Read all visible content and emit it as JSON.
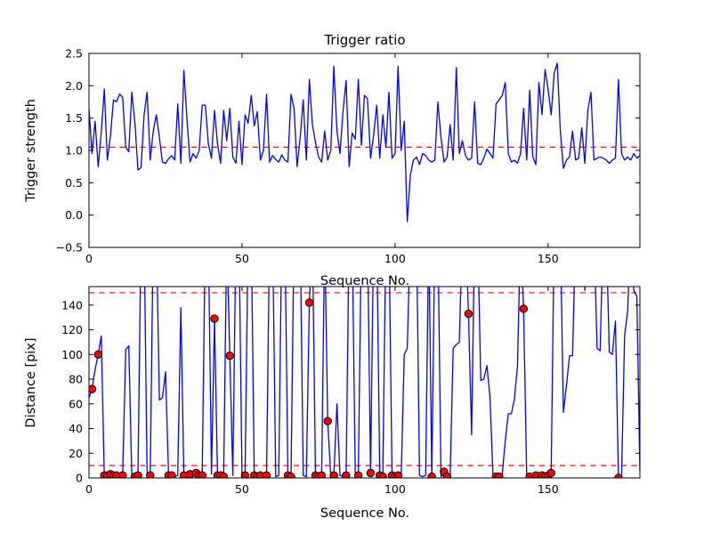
{
  "figure": {
    "background": "#ffffff"
  },
  "chart_data": [
    {
      "type": "line",
      "title": "Trigger ratio",
      "xlabel": "Sequence No.",
      "ylabel": "Trigger strength",
      "xlim": [
        0,
        180
      ],
      "ylim": [
        -0.5,
        2.5
      ],
      "grid": false,
      "legend": "none",
      "line_color": "#0000ff",
      "threshold_color": "#ff0000",
      "thresholds": [
        1.05
      ],
      "xticks": {
        "values": [
          0,
          50,
          100,
          150
        ],
        "labels": [
          "0",
          "50",
          "100",
          "150"
        ]
      },
      "yticks": {
        "values": [
          -0.5,
          0.0,
          0.5,
          1.0,
          1.5,
          2.0,
          2.5
        ],
        "labels": [
          "−0.5",
          "0.0",
          "0.5",
          "1.0",
          "1.5",
          "2.0",
          "2.5"
        ]
      },
      "x_step": 1,
      "values": [
        1.63,
        0.95,
        1.45,
        0.75,
        1.28,
        1.95,
        0.85,
        1.22,
        1.78,
        1.75,
        1.87,
        1.82,
        1.05,
        0.98,
        1.9,
        1.42,
        0.7,
        0.73,
        1.55,
        1.9,
        0.85,
        1.3,
        1.55,
        1.2,
        0.82,
        0.8,
        0.87,
        0.92,
        0.85,
        1.72,
        0.8,
        2.24,
        1.5,
        0.82,
        0.95,
        0.88,
        1.0,
        1.7,
        1.7,
        1.1,
        0.88,
        1.62,
        1.1,
        0.8,
        1.62,
        1.15,
        1.65,
        0.9,
        0.8,
        1.45,
        0.78,
        1.55,
        1.42,
        1.85,
        1.38,
        1.6,
        0.85,
        1.0,
        1.87,
        0.82,
        0.92,
        0.86,
        0.82,
        0.93,
        0.85,
        0.82,
        1.87,
        1.65,
        0.75,
        1.2,
        1.78,
        0.85,
        2.1,
        1.4,
        1.12,
        0.9,
        0.82,
        1.3,
        0.85,
        1.0,
        2.3,
        1.3,
        0.95,
        1.6,
        2.08,
        0.75,
        1.27,
        1.17,
        2.1,
        1.08,
        1.85,
        1.8,
        0.88,
        1.24,
        1.7,
        0.88,
        1.55,
        1.05,
        1.9,
        0.88,
        0.95,
        2.3,
        1.0,
        1.45,
        -0.1,
        0.62,
        0.85,
        0.9,
        0.78,
        0.95,
        0.92,
        0.85,
        0.82,
        0.85,
        1.75,
        1.2,
        0.82,
        0.9,
        1.4,
        0.85,
        2.28,
        0.95,
        1.15,
        0.92,
        0.85,
        0.88,
        1.75,
        0.8,
        0.78,
        0.88,
        1.02,
        0.95,
        0.88,
        1.72,
        1.78,
        1.85,
        2.05,
        0.95,
        0.82,
        0.85,
        0.8,
        0.95,
        1.65,
        0.85,
        1.93,
        0.9,
        0.78,
        2.05,
        1.55,
        2.25,
        1.95,
        1.55,
        2.2,
        2.35,
        1.3,
        0.72,
        0.85,
        0.9,
        1.3,
        0.85,
        0.88,
        1.35,
        0.8,
        1.62,
        1.9,
        0.85,
        0.88,
        0.9,
        0.88,
        0.85,
        0.8,
        0.85,
        0.88,
        2.1,
        0.95,
        0.85,
        0.9,
        0.85,
        0.95,
        0.88,
        0.92
      ]
    },
    {
      "type": "line",
      "title": "",
      "xlabel": "Sequence No.",
      "ylabel": "Distance [pix]",
      "xlim": [
        0,
        180
      ],
      "ylim": [
        0,
        155
      ],
      "grid": false,
      "legend": "none",
      "line_color": "#0000ff",
      "threshold_color": "#ff0000",
      "thresholds": [
        10,
        150
      ],
      "marker_color": "#ff0000",
      "marker_edge_color": "#000000",
      "xticks": {
        "values": [
          0,
          50,
          100,
          150
        ],
        "labels": [
          "0",
          "50",
          "100",
          "150"
        ]
      },
      "yticks": {
        "values": [
          0,
          20,
          40,
          60,
          80,
          100,
          120,
          140
        ],
        "labels": [
          "0",
          "20",
          "40",
          "60",
          "80",
          "100",
          "120",
          "140"
        ]
      },
      "x_step": 1,
      "values": [
        65,
        72,
        88,
        100,
        115,
        2,
        2,
        3,
        2,
        2,
        1,
        2,
        104,
        107,
        2,
        1,
        2,
        200,
        200,
        3,
        2,
        200,
        200,
        63,
        65,
        86,
        2,
        2,
        1,
        2,
        138,
        2,
        2,
        3,
        1,
        4,
        2,
        2,
        200,
        200,
        3,
        129,
        2,
        2,
        1,
        200,
        99,
        2,
        200,
        200,
        2,
        2,
        200,
        200,
        2,
        1,
        2,
        1,
        2,
        200,
        200,
        1,
        2,
        200,
        200,
        2,
        1,
        200,
        200,
        200,
        2,
        1,
        142,
        200,
        2,
        1,
        2,
        200,
        46,
        1,
        2,
        60,
        2,
        1,
        2,
        200,
        200,
        1,
        2,
        200,
        200,
        200,
        4,
        200,
        200,
        2,
        1,
        200,
        200,
        2,
        1,
        2,
        1,
        100,
        105,
        200,
        200,
        200,
        2,
        1,
        2,
        200,
        1,
        200,
        200,
        1,
        5,
        1,
        2,
        105,
        108,
        110,
        200,
        200,
        133,
        35,
        200,
        200,
        79,
        80,
        91,
        66,
        2,
        1,
        1,
        3,
        30,
        52,
        52,
        64,
        90,
        200,
        137,
        2,
        1,
        2,
        2,
        1,
        2,
        1,
        2,
        4,
        200,
        200,
        200,
        53,
        75,
        99,
        99,
        200,
        200,
        200,
        152,
        200,
        200,
        200,
        105,
        103,
        200,
        200,
        102,
        100,
        127,
        0,
        1,
        115,
        135,
        200,
        152,
        147,
        5
      ],
      "markers": [
        [
          1,
          72
        ],
        [
          3,
          100
        ],
        [
          5,
          2
        ],
        [
          6,
          2
        ],
        [
          7,
          3
        ],
        [
          8,
          2
        ],
        [
          9,
          2
        ],
        [
          11,
          2
        ],
        [
          15,
          1
        ],
        [
          16,
          2
        ],
        [
          20,
          2
        ],
        [
          26,
          2
        ],
        [
          27,
          2
        ],
        [
          31,
          2
        ],
        [
          33,
          3
        ],
        [
          35,
          4
        ],
        [
          36,
          2
        ],
        [
          37,
          2
        ],
        [
          41,
          129
        ],
        [
          42,
          2
        ],
        [
          43,
          2
        ],
        [
          44,
          1
        ],
        [
          46,
          99
        ],
        [
          51,
          2
        ],
        [
          54,
          2
        ],
        [
          55,
          1
        ],
        [
          56,
          2
        ],
        [
          58,
          2
        ],
        [
          65,
          2
        ],
        [
          66,
          1
        ],
        [
          72,
          142
        ],
        [
          74,
          2
        ],
        [
          75,
          1
        ],
        [
          76,
          2
        ],
        [
          78,
          46
        ],
        [
          80,
          2
        ],
        [
          84,
          2
        ],
        [
          88,
          2
        ],
        [
          92,
          4
        ],
        [
          95,
          2
        ],
        [
          96,
          1
        ],
        [
          99,
          2
        ],
        [
          100,
          1
        ],
        [
          101,
          2
        ],
        [
          112,
          1
        ],
        [
          116,
          5
        ],
        [
          117,
          1
        ],
        [
          124,
          133
        ],
        [
          133,
          1
        ],
        [
          134,
          1
        ],
        [
          142,
          137
        ],
        [
          144,
          1
        ],
        [
          146,
          2
        ],
        [
          148,
          2
        ],
        [
          149,
          1
        ],
        [
          150,
          2
        ],
        [
          151,
          4
        ],
        [
          173,
          0
        ]
      ]
    }
  ]
}
